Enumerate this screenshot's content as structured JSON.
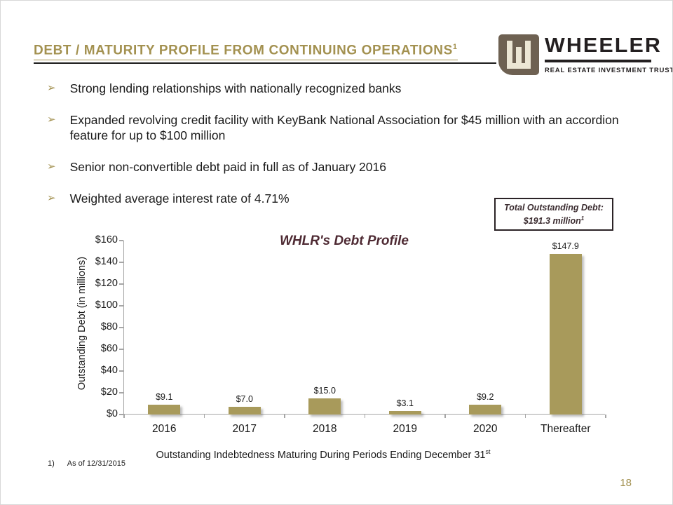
{
  "slide": {
    "title": "DEBT / MATURITY PROFILE FROM CONTINUING OPERATIONS",
    "title_superscript": "1",
    "page_number": "18",
    "footnote_marker": "1)",
    "footnote_text": "As of 12/31/2015"
  },
  "logo": {
    "wordmark": "WHEELER",
    "tagline": "REAL ESTATE INVESTMENT TRUST",
    "monogram": "W-monogram"
  },
  "bullets": [
    "Strong lending relationships with nationally recognized banks",
    "Expanded revolving credit facility with KeyBank National Association for $45 million with an accordion feature for up to $100 million",
    "Senior non-convertible debt paid in full as of January 2016",
    "Weighted average interest rate of 4.71%"
  ],
  "bullet_marker": "➢",
  "callout": {
    "line1": "Total Outstanding Debt:",
    "line2": "$191.3 million",
    "superscript": "1"
  },
  "chart_data": {
    "type": "bar",
    "title": "WHLR's Debt Profile",
    "categories": [
      "2016",
      "2017",
      "2018",
      "2019",
      "2020",
      "Thereafter"
    ],
    "values": [
      9.1,
      7.0,
      15.0,
      3.1,
      9.2,
      147.9
    ],
    "value_labels": [
      "$9.1",
      "$7.0",
      "$15.0",
      "$3.1",
      "$9.2",
      "$147.9"
    ],
    "ylabel": "Outstanding Debt (in millions)",
    "xlabel": "Outstanding  Indebtedness Maturing During Periods Ending December 31",
    "xlabel_superscript": "st",
    "ylim": [
      0,
      160
    ],
    "ytick_labels": [
      "$0",
      "$20",
      "$40",
      "$60",
      "$80",
      "$100",
      "$120",
      "$140",
      "$160"
    ],
    "bar_color": "#a89a5b",
    "grid": false,
    "legend": false
  },
  "colors": {
    "accent_gold": "#a39150",
    "chart_title_maroon": "#4e2a33",
    "bar_khaki": "#a89a5b",
    "logo_brown": "#6e6152",
    "axis_grey": "#a6a6a6",
    "text": "#1a1a1a"
  }
}
